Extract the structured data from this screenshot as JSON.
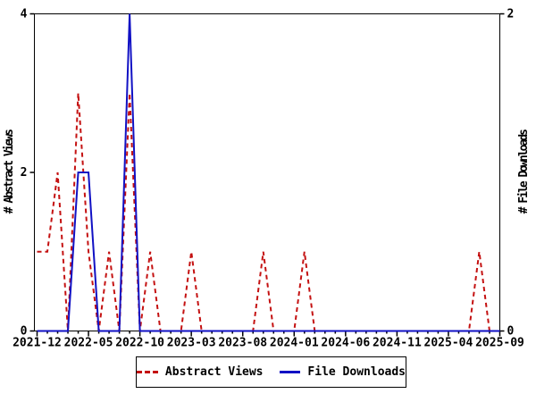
{
  "chart_data": {
    "type": "line",
    "title": "",
    "background": "#ffffff",
    "frame_color": "#000000",
    "grid": false,
    "x": [
      "2021-12",
      "2022-01",
      "2022-02",
      "2022-03",
      "2022-04",
      "2022-05",
      "2022-06",
      "2022-07",
      "2022-08",
      "2022-09",
      "2022-10",
      "2022-11",
      "2022-12",
      "2023-01",
      "2023-02",
      "2023-03",
      "2023-04",
      "2023-05",
      "2023-06",
      "2023-07",
      "2023-08",
      "2023-09",
      "2023-10",
      "2023-11",
      "2023-12",
      "2024-01",
      "2024-02",
      "2024-03",
      "2024-04",
      "2024-05",
      "2024-06",
      "2024-07",
      "2024-08",
      "2024-09",
      "2024-10",
      "2024-11",
      "2024-12",
      "2025-01",
      "2025-02",
      "2025-03",
      "2025-04",
      "2025-05",
      "2025-06",
      "2025-07",
      "2025-08",
      "2025-09"
    ],
    "x_major_tick_every": 5,
    "x_tick_labels": [
      "2021-12",
      "2022-05",
      "2022-10",
      "2023-03",
      "2023-08",
      "2024-01",
      "2024-06",
      "2024-11",
      "2025-04",
      "2025-09"
    ],
    "left_axis": {
      "label": "# Abstract Views",
      "ticks": [
        0,
        2,
        4
      ],
      "range": [
        0,
        4
      ]
    },
    "right_axis": {
      "label": "# File Downloads",
      "ticks": [
        0,
        2
      ],
      "range": [
        0,
        2
      ]
    },
    "series": [
      {
        "name": "Abstract Views",
        "axis": "left",
        "color": "#c41111",
        "style": "dashed",
        "values": [
          1,
          1,
          2,
          0,
          3,
          1,
          0,
          1,
          0,
          3,
          0,
          1,
          0,
          0,
          0,
          1,
          0,
          0,
          0,
          0,
          0,
          0,
          1,
          0,
          0,
          0,
          1,
          0,
          0,
          0,
          0,
          0,
          0,
          0,
          0,
          0,
          0,
          0,
          0,
          0,
          0,
          0,
          0,
          1,
          0,
          0
        ]
      },
      {
        "name": "File Downloads",
        "axis": "right",
        "color": "#1111c4",
        "style": "solid",
        "values": [
          0,
          0,
          0,
          0,
          1,
          1,
          0,
          0,
          0,
          2,
          0,
          0,
          0,
          0,
          0,
          0,
          0,
          0,
          0,
          0,
          0,
          0,
          0,
          0,
          0,
          0,
          0,
          0,
          0,
          0,
          0,
          0,
          0,
          0,
          0,
          0,
          0,
          0,
          0,
          0,
          0,
          0,
          0,
          0,
          0,
          0
        ]
      }
    ],
    "legend": {
      "position": "bottom-center",
      "items": [
        "Abstract Views",
        "File Downloads"
      ]
    }
  }
}
